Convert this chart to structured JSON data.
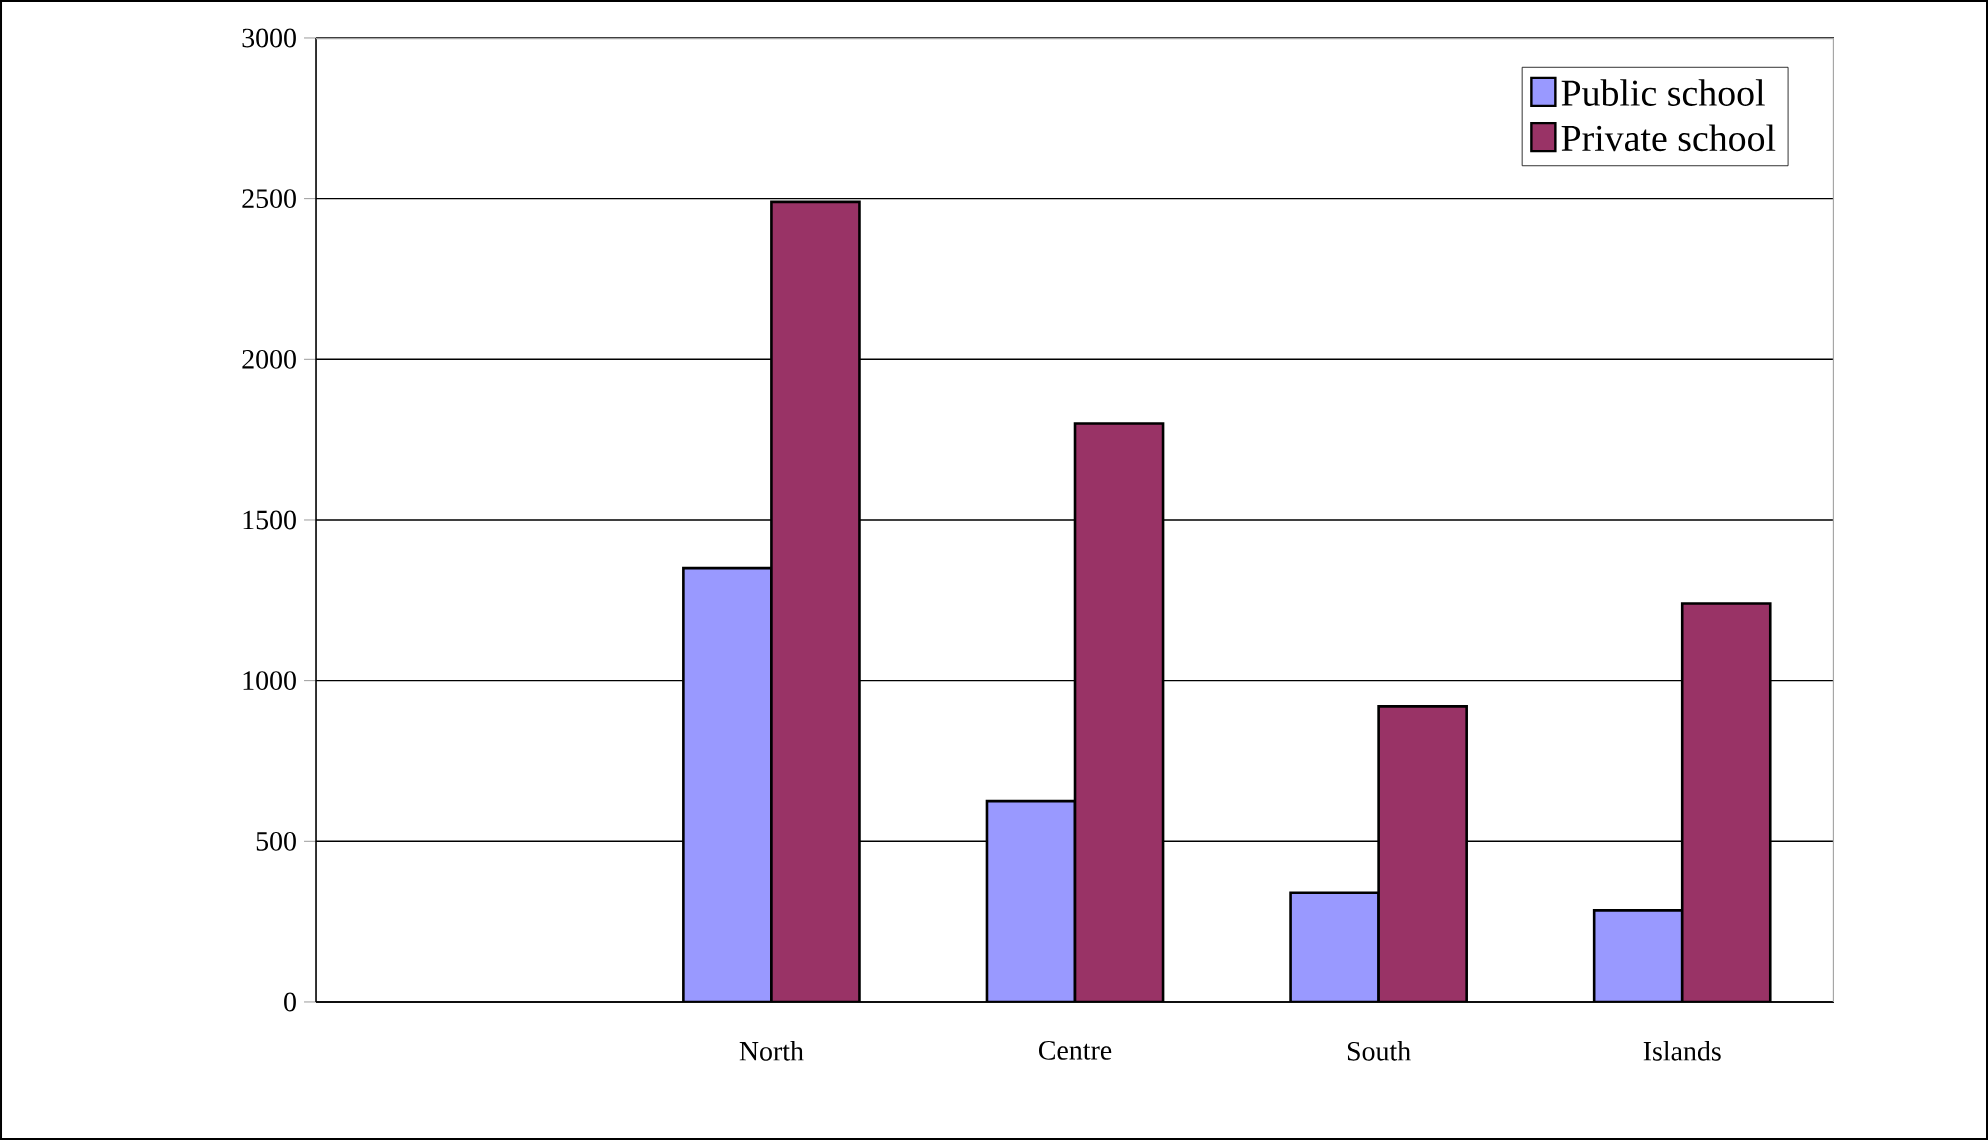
{
  "chart_data": {
    "type": "bar",
    "categories": [
      null,
      "North",
      "Centre",
      "South",
      "Islands"
    ],
    "series": [
      {
        "name": "Public school",
        "color": "#9999ff",
        "values": [
          null,
          1350,
          625,
          340,
          285
        ]
      },
      {
        "name": "Private school",
        "color": "#993366",
        "values": [
          null,
          2490,
          1800,
          920,
          1240
        ]
      }
    ],
    "ylim": [
      0,
      3000
    ],
    "yticks": [
      0,
      500,
      1000,
      1500,
      2000,
      2500,
      3000
    ],
    "grid": "y",
    "legend": "top right"
  }
}
